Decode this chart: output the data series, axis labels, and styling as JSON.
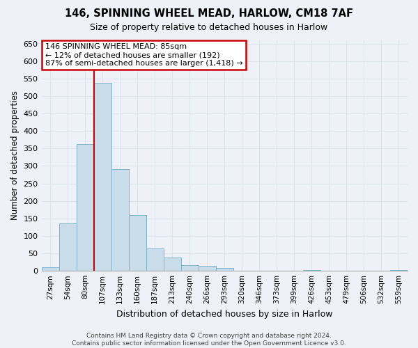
{
  "title": "146, SPINNING WHEEL MEAD, HARLOW, CM18 7AF",
  "subtitle": "Size of property relative to detached houses in Harlow",
  "xlabel": "Distribution of detached houses by size in Harlow",
  "ylabel": "Number of detached properties",
  "categories": [
    "27sqm",
    "54sqm",
    "80sqm",
    "107sqm",
    "133sqm",
    "160sqm",
    "187sqm",
    "213sqm",
    "240sqm",
    "266sqm",
    "293sqm",
    "320sqm",
    "346sqm",
    "373sqm",
    "399sqm",
    "426sqm",
    "453sqm",
    "479sqm",
    "506sqm",
    "532sqm",
    "559sqm"
  ],
  "values": [
    10,
    135,
    362,
    537,
    291,
    160,
    65,
    38,
    17,
    14,
    9,
    0,
    0,
    0,
    0,
    3,
    0,
    0,
    0,
    0,
    3
  ],
  "bar_color": "#c9dcea",
  "bar_edge_color": "#7fb3d0",
  "grid_color": "#dce5ee",
  "background_color": "#eef2f8",
  "vline_color": "#cc0000",
  "vline_x": 2.5,
  "annotation_text": "146 SPINNING WHEEL MEAD: 85sqm\n← 12% of detached houses are smaller (192)\n87% of semi-detached houses are larger (1,418) →",
  "annotation_box_color": "#ffffff",
  "annotation_box_edge": "#cc0000",
  "ylim": [
    0,
    660
  ],
  "yticks": [
    0,
    50,
    100,
    150,
    200,
    250,
    300,
    350,
    400,
    450,
    500,
    550,
    600,
    650
  ],
  "footer": "Contains HM Land Registry data © Crown copyright and database right 2024.\nContains public sector information licensed under the Open Government Licence v3.0."
}
